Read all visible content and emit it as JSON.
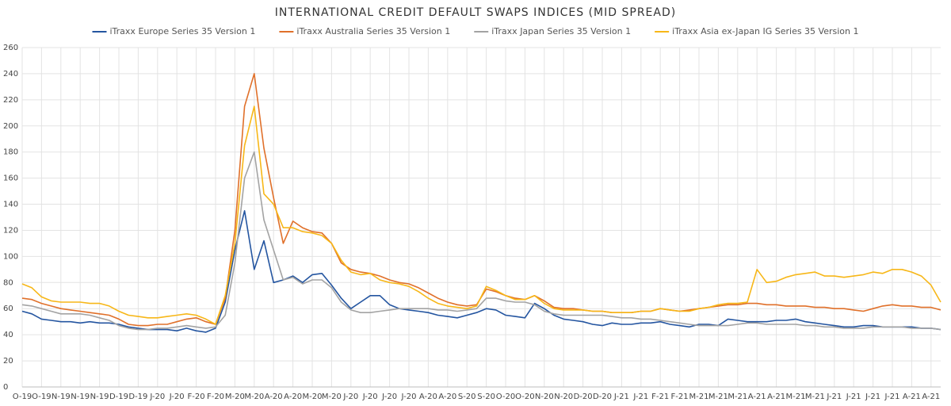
{
  "chart_data": {
    "type": "line",
    "title": "INTERNATIONAL CREDIT DEFAULT SWAPS INDICES (MID SPREAD)",
    "categories": [
      "O-19",
      null,
      "O-19",
      null,
      "N-19",
      null,
      "N-19",
      null,
      "N-19",
      null,
      "D-19",
      null,
      "D-19",
      null,
      "J-20",
      null,
      "J-20",
      null,
      "F-20",
      null,
      "F-20",
      null,
      "M-20",
      null,
      "M-20",
      null,
      "A-20",
      null,
      "A-20",
      null,
      "M-20",
      null,
      "M-20",
      null,
      "J-20",
      null,
      "J-20",
      null,
      "J-20",
      null,
      "J-20",
      null,
      "A-20",
      null,
      "A-20",
      null,
      "S-20",
      null,
      "S-20",
      null,
      "O-20",
      null,
      "O-20",
      null,
      "N-20",
      null,
      "N-20",
      null,
      "D-20",
      null,
      "D-20",
      null,
      "J-21",
      null,
      "J-21",
      null,
      "F-21",
      null,
      "F-21",
      null,
      "M-21",
      null,
      "M-21",
      null,
      "M-21",
      null,
      "A-21",
      null,
      "A-21",
      null,
      "M-21",
      null,
      "M-21",
      null,
      "J-21",
      null,
      "J-21",
      null,
      "J-21",
      null,
      "J-21",
      null,
      "A-21",
      null,
      "A-21",
      null
    ],
    "series": [
      {
        "name": "iTraxx Europe Series 35 Version 1",
        "color": "#2455a0",
        "values": [
          58,
          56,
          52,
          51,
          50,
          50,
          49,
          50,
          49,
          49,
          48,
          46,
          45,
          44,
          44,
          44,
          43,
          45,
          43,
          42,
          45,
          65,
          105,
          135,
          90,
          112,
          80,
          82,
          85,
          80,
          86,
          87,
          78,
          68,
          60,
          65,
          70,
          70,
          63,
          60,
          59,
          58,
          57,
          55,
          54,
          53,
          55,
          57,
          60,
          59,
          55,
          54,
          53,
          64,
          60,
          55,
          52,
          51,
          50,
          48,
          47,
          49,
          48,
          48,
          49,
          49,
          50,
          48,
          47,
          46,
          48,
          48,
          47,
          52,
          51,
          50,
          50,
          50,
          51,
          51,
          52,
          50,
          49,
          48,
          47,
          46,
          46,
          47,
          47,
          46,
          46,
          46,
          46,
          45,
          45,
          44
        ]
      },
      {
        "name": "iTraxx Australia Series 35 Version 1",
        "color": "#e0702a",
        "values": [
          68,
          67,
          64,
          62,
          60,
          59,
          58,
          57,
          56,
          55,
          52,
          48,
          47,
          47,
          48,
          48,
          50,
          52,
          53,
          50,
          48,
          68,
          120,
          215,
          240,
          183,
          145,
          110,
          127,
          122,
          119,
          118,
          110,
          95,
          90,
          88,
          87,
          85,
          82,
          80,
          79,
          76,
          72,
          68,
          65,
          63,
          62,
          63,
          75,
          73,
          70,
          68,
          67,
          70,
          66,
          61,
          60,
          60,
          59,
          58,
          58,
          57,
          57,
          57,
          58,
          58,
          60,
          59,
          58,
          59,
          60,
          61,
          62,
          63,
          63,
          64,
          64,
          63,
          63,
          62,
          62,
          62,
          61,
          61,
          60,
          60,
          59,
          58,
          60,
          62,
          63,
          62,
          62,
          61,
          61,
          59
        ]
      },
      {
        "name": "iTraxx Japan Series 35 Version 1",
        "color": "#a3a3a3",
        "values": [
          63,
          62,
          60,
          58,
          56,
          56,
          56,
          55,
          53,
          51,
          47,
          45,
          44,
          44,
          45,
          45,
          46,
          47,
          46,
          45,
          46,
          55,
          95,
          160,
          180,
          128,
          105,
          82,
          84,
          79,
          82,
          82,
          76,
          65,
          59,
          57,
          57,
          58,
          59,
          60,
          60,
          60,
          60,
          59,
          59,
          58,
          59,
          60,
          68,
          68,
          66,
          65,
          65,
          63,
          58,
          56,
          55,
          55,
          55,
          55,
          55,
          54,
          53,
          53,
          52,
          52,
          51,
          50,
          49,
          48,
          47,
          47,
          47,
          47,
          48,
          49,
          49,
          48,
          48,
          48,
          48,
          47,
          47,
          46,
          46,
          45,
          45,
          45,
          46,
          46,
          46,
          46,
          45,
          45,
          45,
          44
        ]
      },
      {
        "name": "iTraxx Asia ex-Japan IG Series 35 Version 1",
        "color": "#f7b718",
        "values": [
          79,
          76,
          69,
          66,
          65,
          65,
          65,
          64,
          64,
          62,
          58,
          55,
          54,
          53,
          53,
          54,
          55,
          56,
          55,
          52,
          48,
          70,
          110,
          185,
          215,
          148,
          140,
          122,
          122,
          119,
          118,
          116,
          110,
          97,
          88,
          86,
          87,
          82,
          80,
          79,
          77,
          73,
          68,
          64,
          62,
          61,
          60,
          62,
          77,
          74,
          70,
          67,
          67,
          70,
          64,
          60,
          59,
          59,
          59,
          58,
          58,
          57,
          57,
          57,
          58,
          58,
          60,
          59,
          58,
          58,
          60,
          61,
          63,
          64,
          64,
          65,
          90,
          80,
          81,
          84,
          86,
          87,
          88,
          85,
          85,
          84,
          85,
          86,
          88,
          87,
          90,
          90,
          88,
          85,
          78,
          65
        ]
      }
    ],
    "ylim": [
      0,
      260
    ],
    "yticks": [
      0,
      20,
      40,
      60,
      80,
      100,
      120,
      140,
      160,
      180,
      200,
      220,
      240,
      260
    ],
    "grid": true
  }
}
